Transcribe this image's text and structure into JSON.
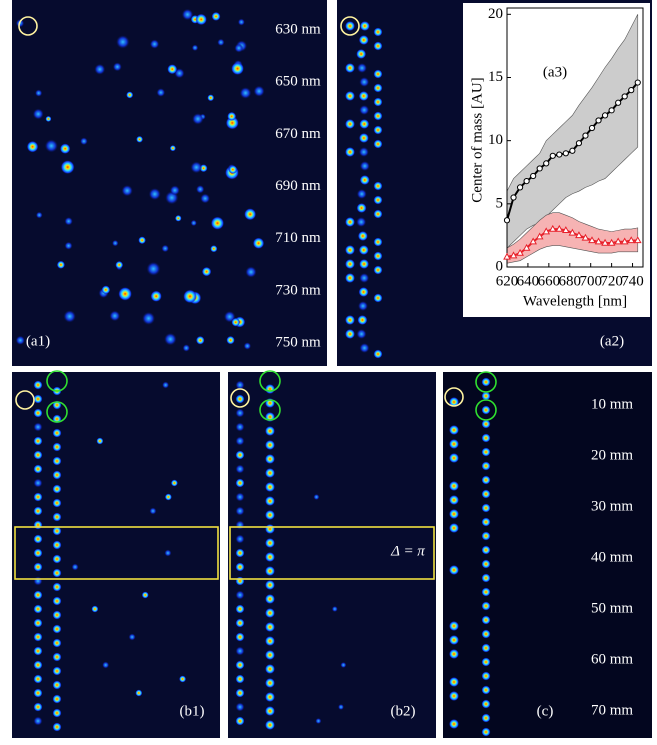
{
  "panel_labels": {
    "a1": "(a1)",
    "a2": "(a2)",
    "b1": "(b1)",
    "b2": "(b2)",
    "c": "(c)"
  },
  "wavelength_labels": [
    "630 nm",
    "650 nm",
    "670 nm",
    "690 nm",
    "710 nm",
    "730 nm",
    "750 nm"
  ],
  "distance_labels": [
    "10 mm",
    "20 mm",
    "30 mm",
    "40 mm",
    "50 mm",
    "60 mm",
    "70 mm"
  ],
  "delta_label": "Δ = π",
  "chart_data": {
    "type": "line",
    "title": "(a3)",
    "x_label": "Wavelength [nm]",
    "y_label": "Center of mass [AU]",
    "x": [
      620,
      626.25,
      632.5,
      638.75,
      645,
      651.25,
      657.5,
      663.75,
      670,
      676.25,
      682.5,
      688.75,
      695,
      701.25,
      707.5,
      713.75,
      720,
      726.25,
      732.5,
      738.75,
      745
    ],
    "series": [
      {
        "color": "#000000",
        "marker": "circle",
        "values": [
          3.7,
          5.5,
          6.3,
          6.8,
          7.2,
          7.8,
          8.2,
          8.8,
          8.9,
          9.0,
          9.2,
          9.8,
          10.4,
          11.0,
          11.6,
          12.0,
          12.4,
          13.0,
          13.5,
          14.0,
          14.6
        ]
      },
      {
        "color": "#e8202a",
        "marker": "triangle",
        "values": [
          0.8,
          0.9,
          1.1,
          1.5,
          2.0,
          2.4,
          2.8,
          3.0,
          3.0,
          2.9,
          2.7,
          2.5,
          2.3,
          2.1,
          2.0,
          1.9,
          1.9,
          2.0,
          2.0,
          2.1,
          2.1
        ]
      }
    ],
    "bands": [
      {
        "color": "#cccccc",
        "upper": [
          6,
          7,
          7.5,
          8,
          8.5,
          9,
          10,
          10.5,
          11,
          11.5,
          12,
          12.8,
          13.5,
          14.2,
          15,
          15.8,
          16.5,
          17.3,
          18,
          19,
          20
        ],
        "lower": [
          1.5,
          2,
          2.5,
          3,
          3.3,
          3.5,
          4,
          4.5,
          5,
          5.5,
          5.8,
          6,
          6.3,
          6.5,
          6.8,
          7,
          7.5,
          8,
          8.5,
          9,
          9.5
        ]
      },
      {
        "color": "#f6b3b3",
        "upper": [
          1.5,
          1.8,
          2.2,
          2.7,
          3.2,
          3.7,
          4.1,
          4.3,
          4.3,
          4.1,
          3.9,
          3.6,
          3.4,
          3.2,
          3,
          2.9,
          2.8,
          2.9,
          3,
          3,
          3.1
        ],
        "lower": [
          0.3,
          0.4,
          0.5,
          0.8,
          1.1,
          1.4,
          1.6,
          1.7,
          1.7,
          1.6,
          1.5,
          1.4,
          1.3,
          1.2,
          1.1,
          1.1,
          1.1,
          1.2,
          1.2,
          1.2,
          1.2
        ]
      }
    ],
    "xlim": [
      620,
      750
    ],
    "xticks": [
      620,
      640,
      660,
      680,
      700,
      720,
      740
    ],
    "ylim": [
      0,
      20.5
    ],
    "yticks": [
      0,
      5,
      10,
      15,
      20
    ]
  }
}
